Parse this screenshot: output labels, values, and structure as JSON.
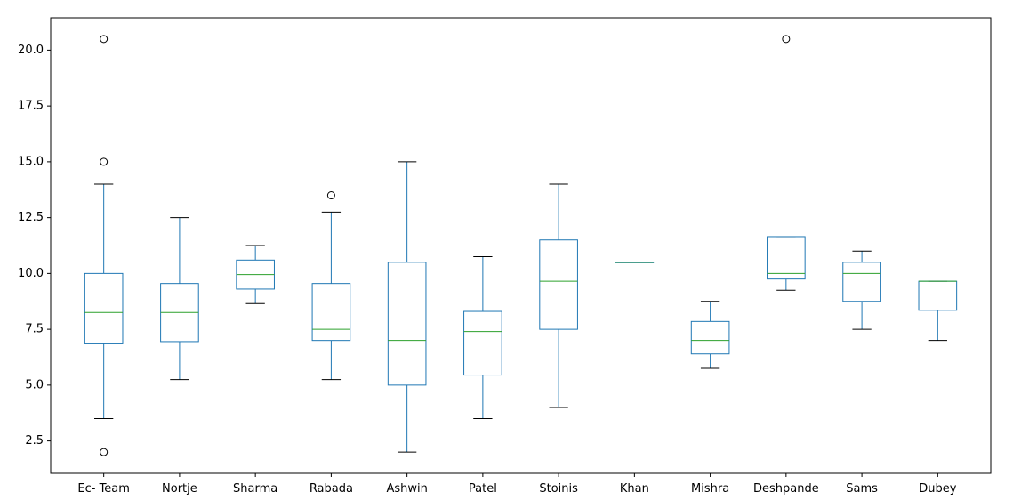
{
  "chart_data": {
    "type": "box",
    "title": "",
    "xlabel": "",
    "ylabel": "",
    "ylim": [
      1.05,
      21.45
    ],
    "yticks": [
      2.5,
      5.0,
      7.5,
      10.0,
      12.5,
      15.0,
      17.5,
      20.0
    ],
    "ytick_labels": [
      "2.5",
      "5.0",
      "7.5",
      "10.0",
      "12.5",
      "15.0",
      "17.5",
      "20.0"
    ],
    "grid": false,
    "legend": "none",
    "colors": {
      "box": "#1f77b4",
      "median": "#2ca02c",
      "whisker_cap": "#000000",
      "flier": "#000000"
    },
    "categories": [
      "Ec- Team",
      "Nortje",
      "Sharma",
      "Rabada",
      "Ashwin",
      "Patel",
      "Stoinis",
      "Khan",
      "Mishra",
      "Deshpande",
      "Sams",
      "Dubey"
    ],
    "boxes": [
      {
        "whislo": 3.5,
        "q1": 6.85,
        "med": 8.25,
        "q3": 10.0,
        "whishi": 14.0,
        "fliers": [
          2.0,
          15.0,
          20.5
        ]
      },
      {
        "whislo": 5.25,
        "q1": 6.95,
        "med": 8.25,
        "q3": 9.55,
        "whishi": 12.5,
        "fliers": []
      },
      {
        "whislo": 8.65,
        "q1": 9.3,
        "med": 9.95,
        "q3": 10.6,
        "whishi": 11.25,
        "fliers": []
      },
      {
        "whislo": 5.25,
        "q1": 7.0,
        "med": 7.5,
        "q3": 9.55,
        "whishi": 12.75,
        "fliers": [
          13.5
        ]
      },
      {
        "whislo": 2.0,
        "q1": 5.0,
        "med": 7.0,
        "q3": 10.5,
        "whishi": 15.0,
        "fliers": []
      },
      {
        "whislo": 3.5,
        "q1": 5.45,
        "med": 7.4,
        "q3": 8.3,
        "whishi": 10.75,
        "fliers": []
      },
      {
        "whislo": 4.0,
        "q1": 7.5,
        "med": 9.65,
        "q3": 11.5,
        "whishi": 14.0,
        "fliers": []
      },
      {
        "whislo": 10.5,
        "q1": 10.5,
        "med": 10.5,
        "q3": 10.5,
        "whishi": 10.5,
        "fliers": []
      },
      {
        "whislo": 5.75,
        "q1": 6.4,
        "med": 7.0,
        "q3": 7.85,
        "whishi": 8.75,
        "fliers": []
      },
      {
        "whislo": 9.25,
        "q1": 9.75,
        "med": 10.0,
        "q3": 11.65,
        "whishi": 11.65,
        "fliers": [
          20.5
        ]
      },
      {
        "whislo": 7.5,
        "q1": 8.75,
        "med": 10.0,
        "q3": 10.5,
        "whishi": 11.0,
        "fliers": []
      },
      {
        "whislo": 7.0,
        "q1": 8.35,
        "med": 9.65,
        "q3": 9.65,
        "whishi": 9.65,
        "fliers": []
      }
    ]
  }
}
